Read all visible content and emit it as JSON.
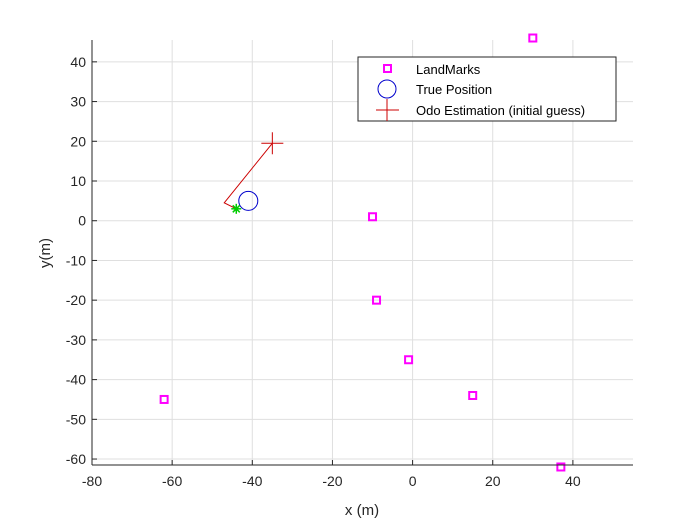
{
  "chart_data": {
    "type": "scatter",
    "title": "",
    "xlabel": "x (m)",
    "ylabel": "y(m)",
    "xlim": [
      -80,
      55
    ],
    "ylim": [
      -61.5,
      45.5
    ],
    "xticks": [
      -80,
      -60,
      -40,
      -20,
      0,
      20,
      40
    ],
    "yticks": [
      -60,
      -50,
      -40,
      -30,
      -20,
      -10,
      0,
      10,
      20,
      30,
      40
    ],
    "grid": true,
    "legend_position": "top-right",
    "series": [
      {
        "name": "LandMarks",
        "marker": "square",
        "color": "#ff00ff",
        "points": [
          [
            30,
            46
          ],
          [
            -10,
            1
          ],
          [
            -9,
            -20
          ],
          [
            -1,
            -35
          ],
          [
            15,
            -44
          ],
          [
            -62,
            -45
          ],
          [
            37,
            -62
          ]
        ]
      },
      {
        "name": "True Position",
        "marker": "circle",
        "color": "#0000cc",
        "points": [
          [
            -41,
            5
          ]
        ]
      },
      {
        "name": "Odo Estimation (initial guess)",
        "marker": "plus",
        "color": "#cc0000",
        "points": [
          [
            -35,
            19.5
          ]
        ]
      }
    ],
    "odometry_path": {
      "color": "#cc0000",
      "points": [
        [
          -35,
          19.5
        ],
        [
          -47,
          4.5
        ],
        [
          -44,
          3
        ]
      ]
    },
    "green_star": {
      "color": "#00cc00",
      "point": [
        -44,
        3
      ]
    }
  }
}
